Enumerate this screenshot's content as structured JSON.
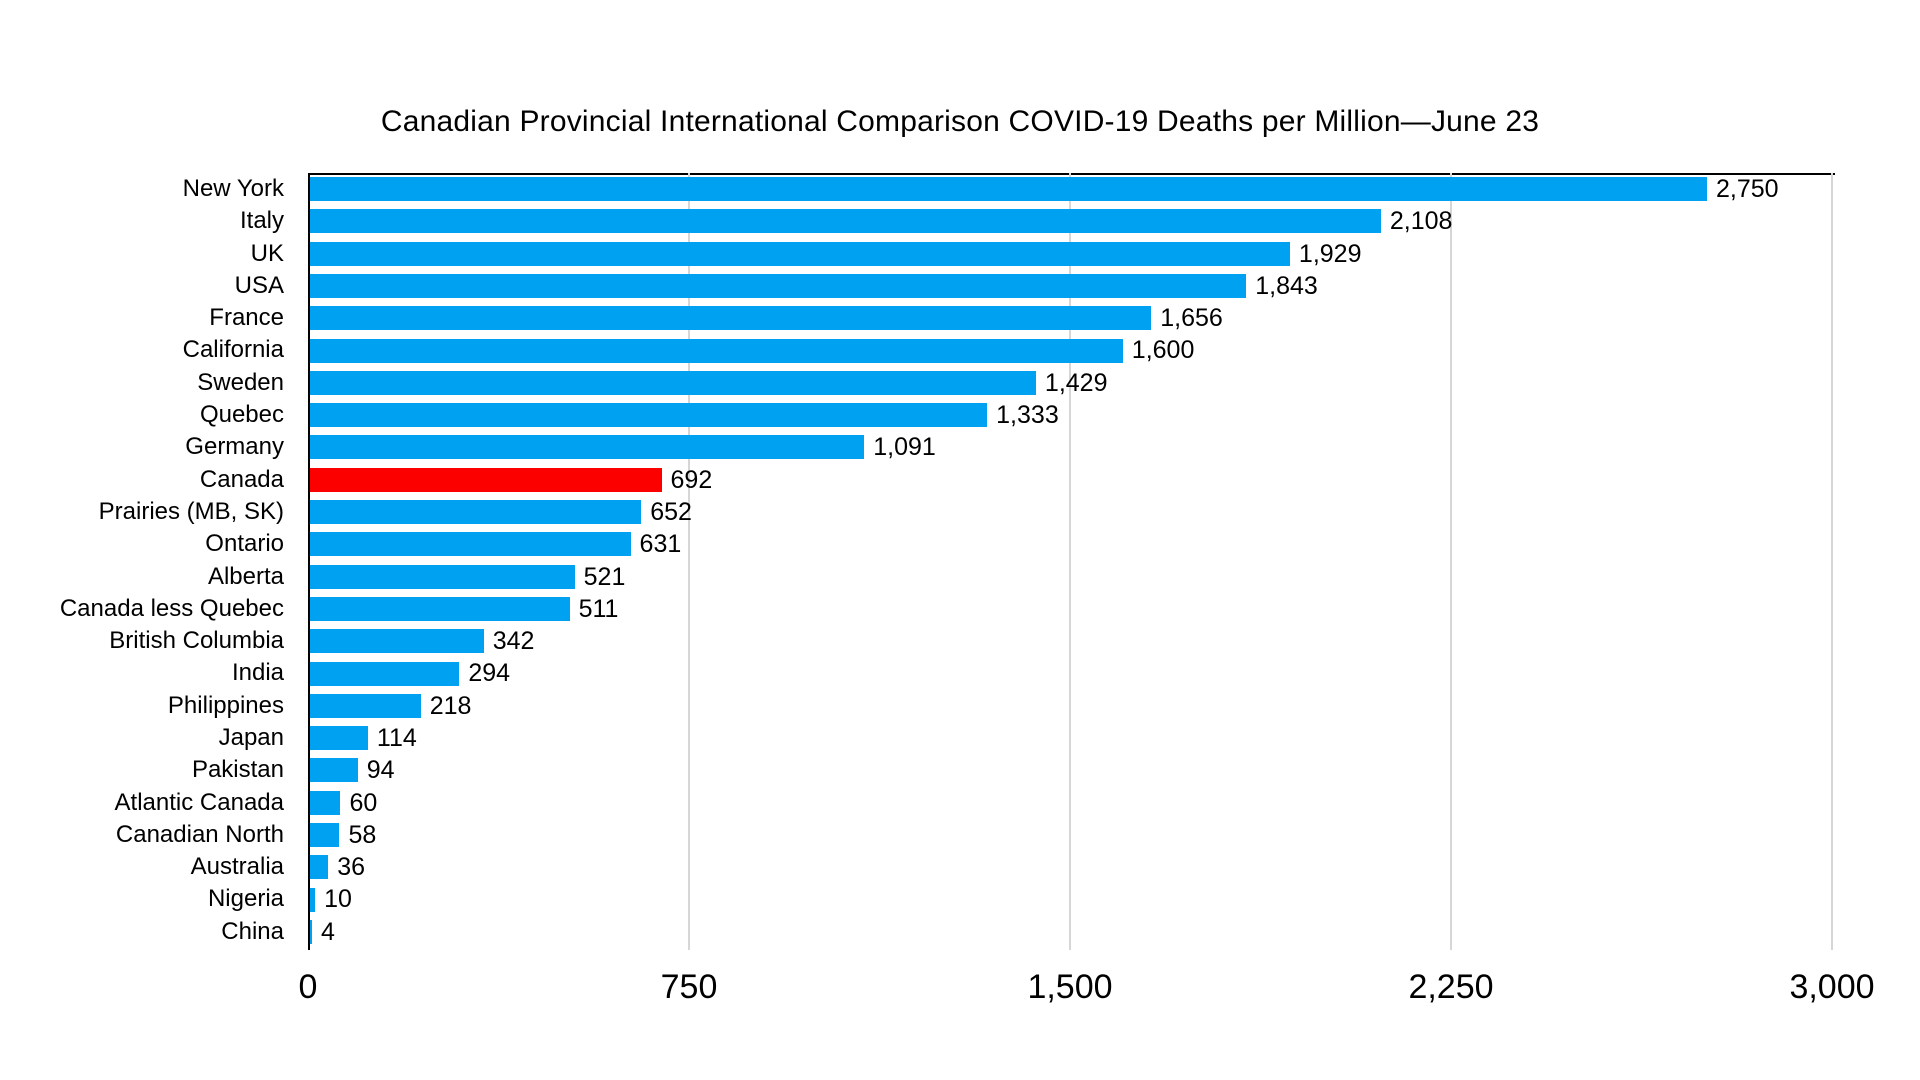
{
  "chart_data": {
    "type": "bar",
    "orientation": "horizontal",
    "title": "Canadian Provincial International Comparison COVID-19 Deaths per Million—June 23",
    "categories": [
      "New York",
      "Italy",
      "UK",
      "USA",
      "France",
      "California",
      "Sweden",
      "Quebec",
      "Germany",
      "Canada",
      "Prairies (MB, SK)",
      "Ontario",
      "Alberta",
      "Canada less Quebec",
      "British Columbia",
      "India",
      "Philippines",
      "Japan",
      "Pakistan",
      "Atlantic Canada",
      "Canadian North",
      "Australia",
      "Nigeria",
      "China"
    ],
    "values": [
      2750,
      2108,
      1929,
      1843,
      1656,
      1600,
      1429,
      1333,
      1091,
      692,
      652,
      631,
      521,
      511,
      342,
      294,
      218,
      114,
      94,
      60,
      58,
      36,
      10,
      4
    ],
    "value_labels": [
      "2,750",
      "2,108",
      "1,929",
      "1,843",
      "1,656",
      "1,600",
      "1,429",
      "1,333",
      "1,091",
      "692",
      "652",
      "631",
      "521",
      "511",
      "342",
      "294",
      "218",
      "114",
      "94",
      "60",
      "58",
      "36",
      "10",
      "4"
    ],
    "highlight_category": "Canada",
    "bar_color": "#00A1F1",
    "highlight_color": "#FC0000",
    "gridline_color": "#d6d6d6",
    "xlabel": "",
    "ylabel": "",
    "xlim": [
      0,
      3000
    ],
    "x_ticks": [
      0,
      750,
      1500,
      2250,
      3000
    ],
    "x_tick_labels": [
      "0",
      "750",
      "1,500",
      "2,250",
      "3,000"
    ],
    "grid": "vertical-gridlines",
    "legend": "none"
  }
}
